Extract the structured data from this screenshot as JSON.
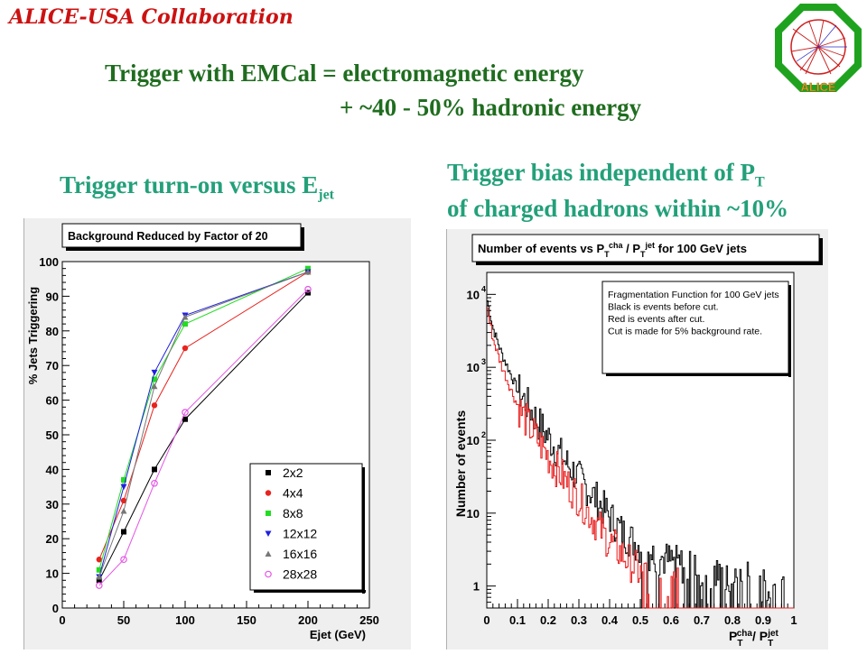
{
  "header": {
    "collaboration": "ALICE-USA Collaboration",
    "line1": "Trigger with EMCal = electromagnetic energy",
    "line2": "+ ~40 - 50% hadronic energy",
    "logo_text": "ALICE"
  },
  "captions": {
    "left_main": "Trigger turn-on versus E",
    "left_sub": "jet",
    "right_line1_main": "Trigger bias independent of P",
    "right_line1_sub": "T",
    "right_line2": "of charged hadrons within ~10%"
  },
  "colors": {
    "title_green": "#1f6d1f",
    "caption_teal": "#23a07a",
    "collab_red": "#cc1111"
  },
  "chart_data": [
    {
      "type": "line",
      "title": "Background Reduced by Factor of 20",
      "xlabel": "Ejet (GeV)",
      "ylabel": "% Jets Triggering",
      "xlim": [
        0,
        250
      ],
      "ylim": [
        0,
        100
      ],
      "x_ticks": [
        "0",
        "50",
        "100",
        "150",
        "200",
        "250"
      ],
      "y_ticks": [
        "0",
        "10",
        "20",
        "30",
        "40",
        "50",
        "60",
        "70",
        "80",
        "90",
        "100"
      ],
      "legend_position": "bottom-right",
      "x": [
        30,
        50,
        75,
        100,
        200
      ],
      "series": [
        {
          "name": "2x2",
          "color": "#000000",
          "marker": "square",
          "values": [
            8,
            22,
            40,
            54.5,
            91
          ]
        },
        {
          "name": "4x4",
          "color": "#e8231e",
          "marker": "circle",
          "values": [
            14,
            31,
            58.5,
            75,
            97
          ]
        },
        {
          "name": "8x8",
          "color": "#22dd22",
          "marker": "square",
          "values": [
            11,
            37,
            66,
            82,
            98
          ]
        },
        {
          "name": "12x12",
          "color": "#1f1fe0",
          "marker": "triangle-down",
          "values": [
            9,
            35,
            68,
            84.5,
            97
          ]
        },
        {
          "name": "16x16",
          "color": "#777777",
          "marker": "triangle-up",
          "values": [
            9,
            28,
            64,
            84,
            97
          ]
        },
        {
          "name": "28x28",
          "color": "#e455e4",
          "marker": "open-circle",
          "values": [
            6.5,
            14,
            36,
            56.5,
            92
          ]
        }
      ]
    },
    {
      "type": "line",
      "title_parts": [
        "Number of events vs P",
        "T",
        "cha",
        " / P",
        "T",
        "jet",
        " for 100 GeV jets"
      ],
      "ylabel": "Number of events",
      "xlabel_parts": [
        "P",
        "T",
        "cha",
        "/ P",
        "T",
        "jet"
      ],
      "xlim": [
        0,
        1
      ],
      "y_scale": "log",
      "ylim": [
        0.5,
        20000
      ],
      "x_ticks": [
        "0",
        "0.1",
        "0.2",
        "0.3",
        "0.4",
        "0.5",
        "0.6",
        "0.7",
        "0.8",
        "0.9",
        "1"
      ],
      "y_ticks": [
        {
          "value": 1,
          "base": "1",
          "exp": ""
        },
        {
          "value": 10,
          "base": "10",
          "exp": ""
        },
        {
          "value": 100,
          "base": "10",
          "exp": "2"
        },
        {
          "value": 1000,
          "base": "10",
          "exp": "3"
        },
        {
          "value": 10000,
          "base": "10",
          "exp": "4"
        }
      ],
      "annotation": [
        "Fragmentation Function for 100 GeV jets",
        "Black is events before cut.",
        "Red is events after cut.",
        "Cut is made for 5% background rate."
      ],
      "series": [
        {
          "name": "before cut",
          "color": "#000000",
          "x": [
            0.0,
            0.02,
            0.05,
            0.1,
            0.15,
            0.2,
            0.25,
            0.3,
            0.35,
            0.4,
            0.45,
            0.5,
            0.55,
            0.6,
            0.65,
            0.7,
            0.75,
            0.8,
            0.85,
            0.9,
            0.95
          ],
          "values": [
            9000,
            3500,
            1500,
            500,
            230,
            110,
            55,
            30,
            17,
            9,
            5,
            3.5,
            2.6,
            2.2,
            1.8,
            1.5,
            1.4,
            1.3,
            1.2,
            1.1,
            1.0
          ]
        },
        {
          "name": "after cut",
          "color": "#e81c1c",
          "x": [
            0.0,
            0.02,
            0.05,
            0.1,
            0.15,
            0.2,
            0.25,
            0.3,
            0.35,
            0.4,
            0.45,
            0.5,
            0.55,
            0.6
          ],
          "values": [
            7000,
            2500,
            1000,
            300,
            130,
            60,
            30,
            16,
            8,
            4,
            2.5,
            1.5,
            1.2,
            1.0
          ]
        }
      ]
    }
  ]
}
